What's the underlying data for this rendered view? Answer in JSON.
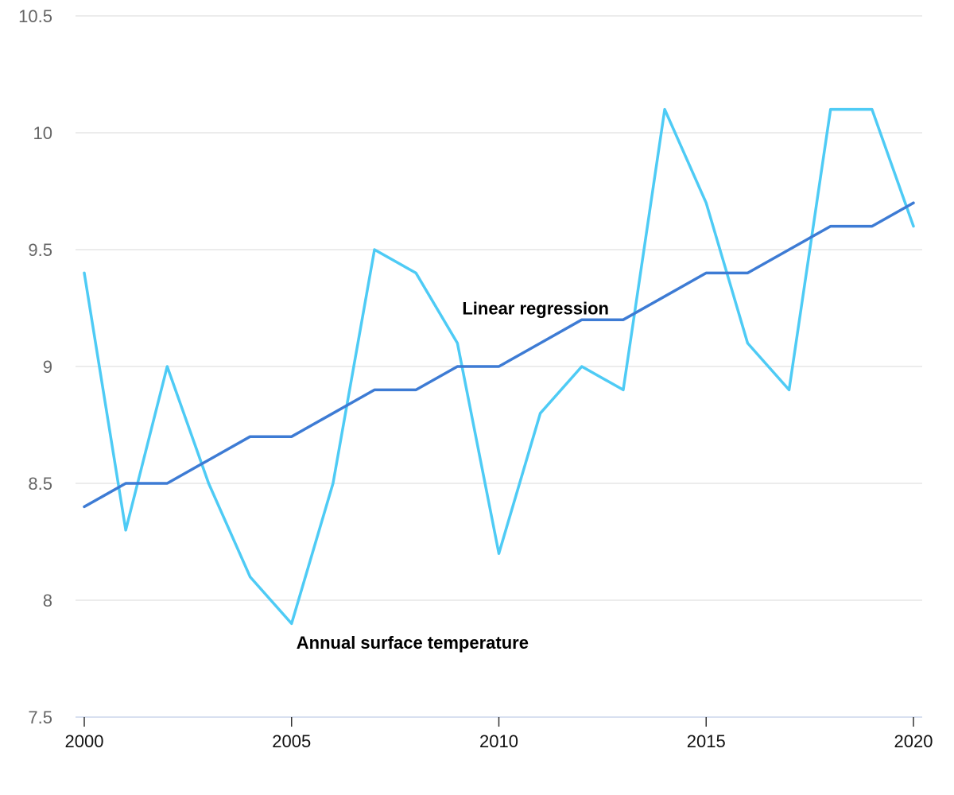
{
  "chart_data": {
    "type": "line",
    "title": "",
    "xlabel": "",
    "ylabel": "",
    "x": [
      2000,
      2001,
      2002,
      2003,
      2004,
      2005,
      2006,
      2007,
      2008,
      2009,
      2010,
      2011,
      2012,
      2013,
      2014,
      2015,
      2016,
      2017,
      2018,
      2019,
      2020
    ],
    "xlim": [
      2000,
      2020
    ],
    "ylim": [
      7.5,
      10.5
    ],
    "x_ticks": [
      "2000",
      "2005",
      "2010",
      "2015",
      "2020"
    ],
    "y_ticks": [
      "7.5",
      "8",
      "8.5",
      "9",
      "9.5",
      "10",
      "10.5"
    ],
    "grid": true,
    "legend": "inline labels",
    "series": [
      {
        "name": "Annual surface temperature",
        "color": "#4ecbf5",
        "values": [
          9.4,
          8.3,
          9.0,
          8.5,
          8.1,
          7.9,
          8.5,
          9.5,
          9.4,
          9.1,
          8.2,
          8.8,
          9.0,
          8.9,
          10.1,
          9.7,
          9.1,
          8.9,
          10.1,
          10.1,
          9.6
        ]
      },
      {
        "name": "Linear regression",
        "color": "#3d7bd4",
        "values": [
          8.4,
          8.5,
          8.5,
          8.6,
          8.7,
          8.7,
          8.8,
          8.9,
          8.9,
          9.0,
          9.0,
          9.1,
          9.2,
          9.2,
          9.3,
          9.4,
          9.4,
          9.5,
          9.6,
          9.6,
          9.7
        ]
      }
    ],
    "annotations": [
      {
        "text": "Annual surface temperature",
        "series": 0,
        "anchor_x": 2005,
        "anchor_y": 7.82
      },
      {
        "text": "Linear regression",
        "series": 1,
        "anchor_x": 2009,
        "anchor_y": 9.25
      }
    ]
  }
}
